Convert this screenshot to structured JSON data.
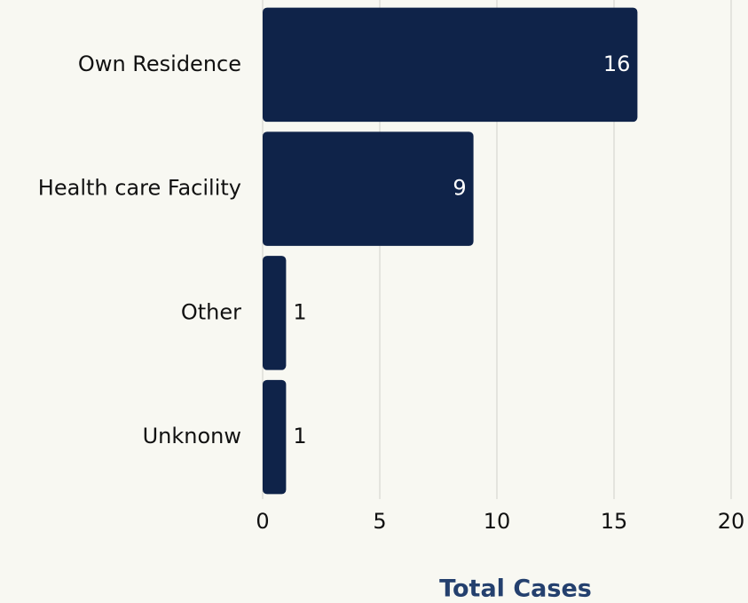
{
  "chart_data": {
    "type": "bar",
    "orientation": "horizontal",
    "categories": [
      "Own Residence",
      "Health care Facility",
      "Other",
      "Unknonw"
    ],
    "values": [
      16,
      9,
      1,
      1
    ],
    "color": "#0f2349",
    "x_label": "Total Cases",
    "xlim": [
      0,
      20
    ],
    "xticks": [
      0,
      5,
      10,
      15,
      20
    ],
    "grid": true
  }
}
